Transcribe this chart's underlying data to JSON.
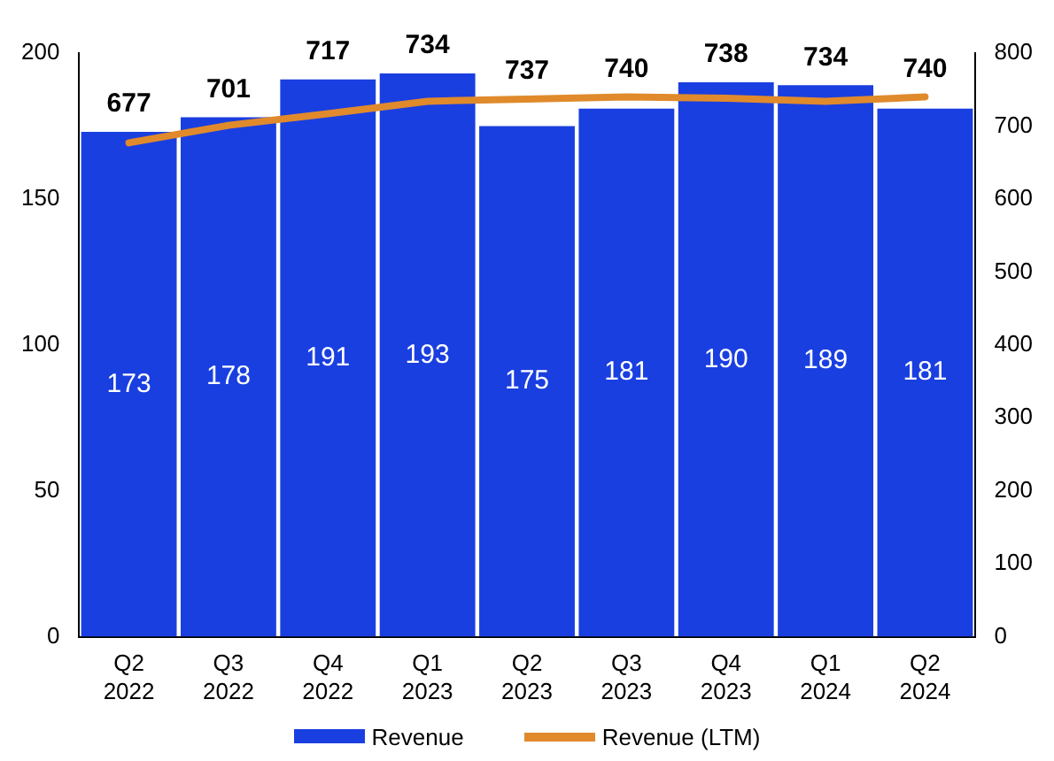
{
  "chart_data": {
    "type": "bar",
    "categories": [
      "Q2 2022",
      "Q3 2022",
      "Q4 2022",
      "Q1 2023",
      "Q2 2023",
      "Q3 2023",
      "Q4 2023",
      "Q1 2024",
      "Q2 2024"
    ],
    "series": [
      {
        "name": "Revenue",
        "color": "#1a3fe0",
        "values": [
          173,
          178,
          191,
          193,
          175,
          181,
          190,
          189,
          181
        ]
      },
      {
        "name": "Revenue (LTM)",
        "type": "line",
        "axis": "y2",
        "color": "#e08a2c",
        "values": [
          677,
          701,
          717,
          734,
          737,
          740,
          738,
          734,
          740
        ]
      }
    ],
    "ylim": [
      0,
      200
    ],
    "yticks": [
      0,
      50,
      100,
      150,
      200
    ],
    "y2lim": [
      0,
      800
    ],
    "y2ticks": [
      0,
      100,
      200,
      300,
      400,
      500,
      600,
      700,
      800
    ],
    "data_labels": true,
    "legend": "bottom",
    "grid": false,
    "marker": "none",
    "line_style": "solid"
  }
}
